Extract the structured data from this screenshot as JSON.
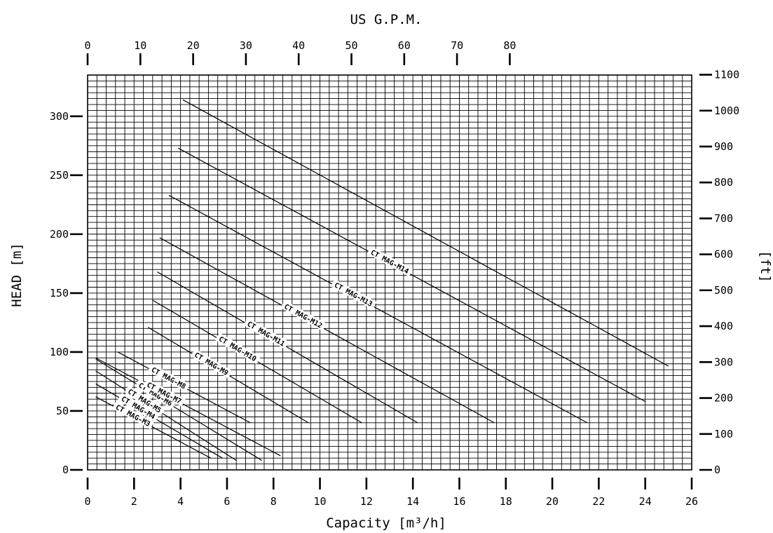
{
  "chart_data": {
    "type": "line",
    "title": "US G.P.M.",
    "xlabel": "Capacity [m³/h]",
    "ylabel": "HEAD [m]",
    "y2label": "[ft]",
    "x2label": "US G.P.M.",
    "xlim": [
      0,
      26
    ],
    "ylim": [
      0,
      335
    ],
    "x_ticks": [
      0,
      2,
      4,
      6,
      8,
      10,
      12,
      14,
      16,
      18,
      20,
      22,
      24,
      26
    ],
    "y_ticks": [
      0,
      50,
      100,
      150,
      200,
      250,
      300
    ],
    "top_ticks": [
      0,
      10,
      20,
      30,
      40,
      50,
      60,
      70,
      80
    ],
    "right_ticks": [
      0,
      100,
      200,
      300,
      400,
      500,
      600,
      700,
      800,
      900,
      1000,
      1100
    ],
    "grid": true,
    "series": [
      {
        "name": "CT MAG-M3",
        "x": [
          0.35,
          5.3
        ],
        "y": [
          62,
          10
        ]
      },
      {
        "name": "CT MAG-M4",
        "x": [
          0.35,
          5.8
        ],
        "y": [
          73,
          10
        ]
      },
      {
        "name": "CT MAG-M5",
        "x": [
          0.35,
          6.4
        ],
        "y": [
          84,
          8
        ]
      },
      {
        "name": "CT MAG-M6",
        "x": [
          0.35,
          7.5
        ],
        "y": [
          94,
          8
        ]
      },
      {
        "name": "CT MAG-M7",
        "x": [
          0.35,
          8.3
        ],
        "y": [
          95,
          12
        ]
      },
      {
        "name": "CT MAG-M8",
        "x": [
          1.3,
          7.0
        ],
        "y": [
          100,
          40
        ]
      },
      {
        "name": "CT MAG-M9",
        "x": [
          2.6,
          9.5
        ],
        "y": [
          121,
          40
        ]
      },
      {
        "name": "CT MAG-M10",
        "x": [
          2.8,
          11.8
        ],
        "y": [
          144,
          40
        ]
      },
      {
        "name": "CT MAG-M11",
        "x": [
          3.0,
          14.2
        ],
        "y": [
          168,
          40
        ]
      },
      {
        "name": "CT MAG-M12",
        "x": [
          3.1,
          17.5
        ],
        "y": [
          197,
          40
        ]
      },
      {
        "name": "CT MAG-M13",
        "x": [
          3.5,
          21.5
        ],
        "y": [
          233,
          40
        ]
      },
      {
        "name": "CT MAG-M14",
        "x": [
          3.9,
          24.0
        ],
        "y": [
          273,
          58
        ]
      },
      {
        "name": "",
        "x": [
          4.1,
          25.0
        ],
        "y": [
          314,
          88
        ]
      }
    ]
  }
}
